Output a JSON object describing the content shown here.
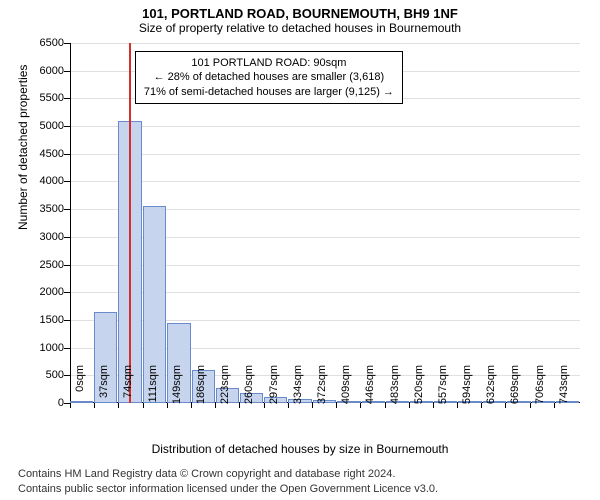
{
  "title1": "101, PORTLAND ROAD, BOURNEMOUTH, BH9 1NF",
  "title2": "Size of property relative to detached houses in Bournemouth",
  "ylabel": "Number of detached properties",
  "xlabel": "Distribution of detached houses by size in Bournemouth",
  "attribution_line1": "Contains HM Land Registry data © Crown copyright and database right 2024.",
  "attribution_line2": "Contains public sector information licensed under the Open Government Licence v3.0.",
  "annotation": {
    "line1": "101 PORTLAND ROAD: 90sqm",
    "line2": "← 28% of detached houses are smaller (3,618)",
    "line3": "71% of semi-detached houses are larger (9,125) →"
  },
  "chart": {
    "type": "histogram",
    "bar_fill": "#c6d4ee",
    "bar_stroke": "#6a8bc9",
    "grid_color": "#e0e0e0",
    "indicator_color": "#d32f2f",
    "background": "#ffffff",
    "ylim": [
      0,
      6500
    ],
    "ytick_step": 500,
    "xlim": [
      0,
      780
    ],
    "xtick_step": 37,
    "xtick_labels": [
      "0sqm",
      "37sqm",
      "74sqm",
      "111sqm",
      "149sqm",
      "186sqm",
      "223sqm",
      "260sqm",
      "297sqm",
      "334sqm",
      "372sqm",
      "409sqm",
      "446sqm",
      "483sqm",
      "520sqm",
      "557sqm",
      "594sqm",
      "632sqm",
      "669sqm",
      "706sqm",
      "743sqm"
    ],
    "indicator_x": 90,
    "bar_width_sqm": 37,
    "bars": [
      {
        "x": 0,
        "count": 5
      },
      {
        "x": 37,
        "count": 1650
      },
      {
        "x": 74,
        "count": 5100
      },
      {
        "x": 111,
        "count": 3550
      },
      {
        "x": 149,
        "count": 1450
      },
      {
        "x": 186,
        "count": 600
      },
      {
        "x": 223,
        "count": 280
      },
      {
        "x": 260,
        "count": 180
      },
      {
        "x": 297,
        "count": 110
      },
      {
        "x": 334,
        "count": 70
      },
      {
        "x": 372,
        "count": 55
      },
      {
        "x": 409,
        "count": 40
      },
      {
        "x": 446,
        "count": 25
      },
      {
        "x": 483,
        "count": 10
      },
      {
        "x": 520,
        "count": 8
      },
      {
        "x": 557,
        "count": 6
      },
      {
        "x": 594,
        "count": 5
      },
      {
        "x": 632,
        "count": 4
      },
      {
        "x": 669,
        "count": 3
      },
      {
        "x": 706,
        "count": 2
      },
      {
        "x": 743,
        "count": 2
      }
    ]
  }
}
